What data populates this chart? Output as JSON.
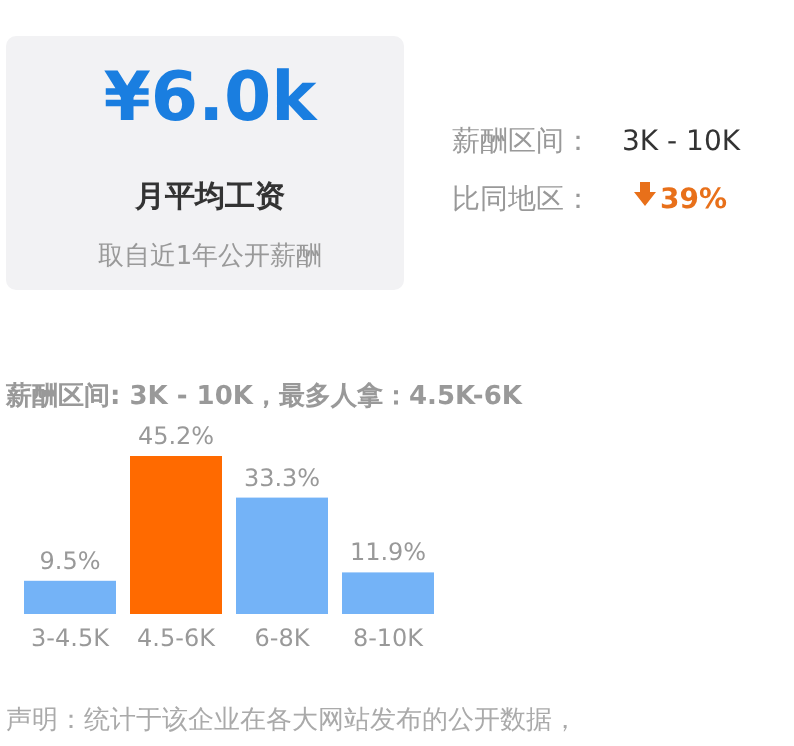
{
  "chart_data": [
    {
      "type": "other",
      "title": "¥6.0k",
      "subtitle": "月平均工资",
      "annotations": [
        "取自近1年公开薪酬",
        "薪酬区间：",
        "3K - 10K",
        "比同地区：",
        "39%"
      ]
    },
    {
      "type": "bar",
      "title": "薪酬区间: 3K - 10K，最多人拿：4.5K-6K",
      "categories": [
        "3-4.5K",
        "4.5-6K",
        "6-8K",
        "8-10K"
      ],
      "values": [
        9.5,
        45.2,
        33.3,
        11.9
      ],
      "colors": [
        "#74b3f7",
        "#ff6a00",
        "#74b3f7",
        "#74b3f7"
      ],
      "value_labels": [
        "9.5%",
        "45.2%",
        "33.3%",
        "11.9%"
      ],
      "annotations": [
        "声明：统计于该企业在各大网站发布的公开数据，"
      ]
    }
  ]
}
